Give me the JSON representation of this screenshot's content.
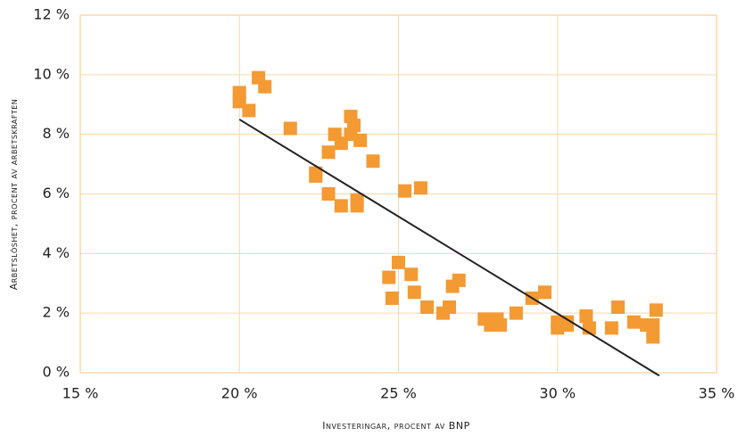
{
  "chart_data": {
    "type": "scatter",
    "xlabel": "Investeringar, procent av BNP",
    "ylabel": "Arbetslöshet, procent av arbetskraften",
    "color": "#f39a33",
    "grid": true,
    "xlim": [
      15,
      35
    ],
    "xticks": [
      {
        "value": 15,
        "label": "15 %"
      },
      {
        "value": 20,
        "label": "20 %"
      },
      {
        "value": 25,
        "label": "25 %"
      },
      {
        "value": 30,
        "label": "30 %"
      },
      {
        "value": 35,
        "label": "35 %"
      }
    ],
    "ylim": [
      0,
      12
    ],
    "yticks": [
      {
        "value": 0,
        "label": "0 %"
      },
      {
        "value": 2,
        "label": "2 %"
      },
      {
        "value": 4,
        "label": "4 %"
      },
      {
        "value": 6,
        "label": "6 %"
      },
      {
        "value": 8,
        "label": "8 %"
      },
      {
        "value": 10,
        "label": "10 %"
      },
      {
        "value": 12,
        "label": "12 %"
      }
    ],
    "x": [
      20.0,
      20.0,
      20.3,
      20.6,
      20.8,
      21.6,
      22.4,
      22.4,
      22.8,
      22.8,
      23.0,
      23.2,
      23.2,
      23.5,
      23.5,
      23.6,
      23.8,
      23.7,
      23.7,
      24.2,
      25.2,
      25.7,
      24.7,
      25.0,
      24.8,
      25.4,
      25.5,
      25.9,
      26.4,
      26.6,
      26.7,
      26.9,
      27.7,
      27.9,
      28.1,
      28.2,
      28.7,
      29.2,
      29.6,
      30.0,
      30.0,
      30.3,
      30.3,
      30.9,
      31.0,
      31.7,
      31.9,
      32.4,
      32.8,
      33.0,
      33.0,
      33.1
    ],
    "values": [
      9.4,
      9.1,
      8.8,
      9.9,
      9.6,
      8.2,
      6.7,
      6.6,
      7.4,
      6.0,
      8.0,
      7.7,
      5.6,
      8.6,
      8.0,
      8.3,
      7.8,
      5.8,
      5.6,
      7.1,
      6.1,
      6.2,
      3.2,
      3.7,
      2.5,
      3.3,
      2.7,
      2.2,
      2.0,
      2.2,
      2.9,
      3.1,
      1.8,
      1.6,
      1.8,
      1.6,
      2.0,
      2.5,
      2.7,
      1.7,
      1.5,
      1.6,
      1.7,
      1.9,
      1.5,
      1.5,
      2.2,
      1.7,
      1.6,
      1.2,
      1.6,
      2.1
    ],
    "trendline": {
      "x": [
        20.0,
        33.2
      ],
      "y": [
        8.5,
        -0.1
      ],
      "color": "#222222"
    }
  }
}
